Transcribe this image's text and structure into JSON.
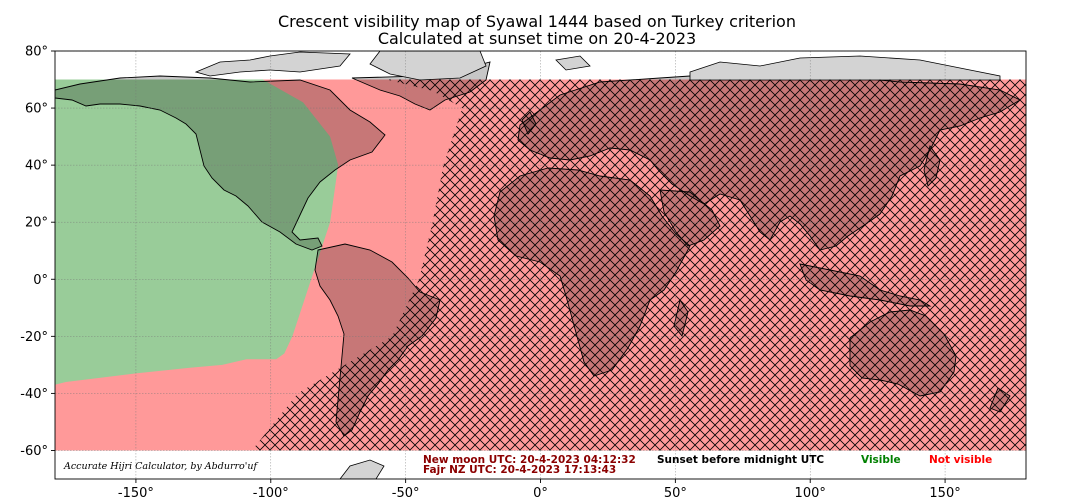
{
  "title_line1": "Crescent visibility map of Syawal 1444 based on Turkey criterion",
  "title_line2": "Calculated at sunset time on 20-4-2023",
  "colors": {
    "visible_fill": "#99cc99",
    "not_visible_fill": "#ff9999",
    "land_gray": "#d3d3d3",
    "visible_text": "#008000",
    "not_visible_text": "#ff0000",
    "info_text": "#8b0000"
  },
  "chart_data": {
    "type": "map",
    "projection": "plate-carree",
    "xlim": [
      -180,
      180
    ],
    "ylim": [
      -70,
      80
    ],
    "x_ticks": [
      -150,
      -100,
      -50,
      0,
      50,
      100,
      150
    ],
    "y_ticks": [
      80,
      60,
      40,
      20,
      0,
      -20,
      -40,
      -60
    ],
    "x_tick_labels": [
      "-150°",
      "-100°",
      "-50°",
      "0°",
      "50°",
      "100°",
      "150°"
    ],
    "y_tick_labels": [
      "80°",
      "60°",
      "40°",
      "20°",
      "0°",
      "-20°",
      "-40°",
      "-60°"
    ],
    "grid": true,
    "computed_lat_range": [
      -60,
      70
    ],
    "visible_region_boundary": [
      {
        "lat": 70,
        "lon": -180
      },
      {
        "lat": 70,
        "lon": -103
      },
      {
        "lat": 62,
        "lon": -88
      },
      {
        "lat": 50,
        "lon": -78
      },
      {
        "lat": 40,
        "lon": -75
      },
      {
        "lat": 20,
        "lon": -78
      },
      {
        "lat": 0,
        "lon": -85
      },
      {
        "lat": -20,
        "lon": -92
      },
      {
        "lat": -26,
        "lon": -95
      },
      {
        "lat": -28,
        "lon": -98
      },
      {
        "lat": -28,
        "lon": -109
      },
      {
        "lat": -30,
        "lon": -118
      },
      {
        "lat": -31,
        "lon": -130
      },
      {
        "lat": -33,
        "lon": -150
      },
      {
        "lat": -36,
        "lon": -176
      },
      {
        "lat": -37,
        "lon": -180
      }
    ],
    "sunset_before_midnight_boundary": [
      {
        "lat": 70,
        "lon": -57
      },
      {
        "lat": 66,
        "lon": -40
      },
      {
        "lat": 60,
        "lon": -29
      },
      {
        "lat": 40,
        "lon": -36
      },
      {
        "lat": 20,
        "lon": -40
      },
      {
        "lat": 0,
        "lon": -45
      },
      {
        "lat": -20,
        "lon": -55
      },
      {
        "lat": -40,
        "lon": -90
      },
      {
        "lat": -60,
        "lon": -107
      }
    ]
  },
  "legend": {
    "new_moon": "New moon UTC: 20-4-2023 04:12:32",
    "fajr_nz": "Fajr NZ UTC: 20-4-2023 17:13:43",
    "sunset_label": "Sunset before midnight UTC",
    "visible_label": "Visible",
    "not_visible_label": "Not visible"
  },
  "credit": "Accurate Hijri Calculator, by Abdurro'uf"
}
